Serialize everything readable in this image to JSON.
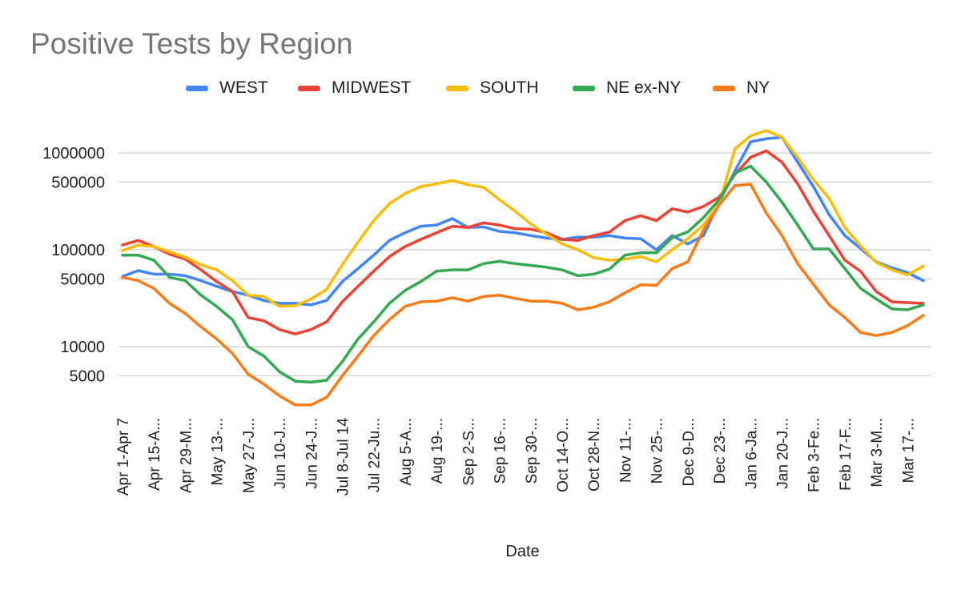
{
  "chart_data": {
    "type": "line",
    "title": "Positive Tests by Region",
    "xlabel": "Date",
    "ylabel": "",
    "yscale": "log",
    "ylim": [
      2500,
      2000000
    ],
    "grid": true,
    "legend_position": "top",
    "yticks": [
      {
        "value": 5000,
        "label": "5000"
      },
      {
        "value": 10000,
        "label": "10000"
      },
      {
        "value": 50000,
        "label": "50000"
      },
      {
        "value": 100000,
        "label": "100000"
      },
      {
        "value": 500000,
        "label": "500000"
      },
      {
        "value": 1000000,
        "label": "1000000"
      }
    ],
    "categories": [
      "Apr 1-Apr 7",
      "Apr 8-Apr 14",
      "Apr 15-Apr 21",
      "Apr 22-Apr 28",
      "Apr 29-May 5",
      "May 6-May 12",
      "May 13-May 19",
      "May 20-May 26",
      "May 27-Jun 2",
      "Jun 3-Jun 9",
      "Jun 10-Jun 16",
      "Jun 17-Jun 23",
      "Jun 24-Jun 30",
      "Jul 1-Jul 7",
      "Jul 8-Jul 14",
      "Jul 15-Jul 21",
      "Jul 22-Jul 28",
      "Jul 29-Aug 4",
      "Aug 5-Aug 11",
      "Aug 12-Aug 18",
      "Aug 19-Aug 25",
      "Aug 26-Sep 1",
      "Sep 2-Sep 8",
      "Sep 9-Sep 15",
      "Sep 16-Sep 22",
      "Sep 23-Sep 29",
      "Sep 30-Oct 6",
      "Oct 7-Oct 13",
      "Oct 14-Oct 20",
      "Oct 21-Oct 27",
      "Oct 28-Nov 3",
      "Nov 4-Nov 10",
      "Nov 11-Nov 17",
      "Nov 18-Nov 24",
      "Nov 25-Dec 1",
      "Dec 2-Dec 8",
      "Dec 9-Dec 15",
      "Dec 16-Dec 22",
      "Dec 23-Dec 29",
      "Dec 30-Jan 5",
      "Jan 6-Jan 12",
      "Jan 13-Jan 19",
      "Jan 20-Jan 26",
      "Jan 27-Feb 2",
      "Feb 3-Feb 9",
      "Feb 10-Feb 16",
      "Feb 17-Feb 23",
      "Feb 24-Mar 2",
      "Mar 3-Mar 9",
      "Mar 10-Mar 16",
      "Mar 17-Mar 23",
      "Mar 24-Mar 30"
    ],
    "xtick_labels": [
      {
        "index": 0,
        "label": "Apr 1-Apr 7"
      },
      {
        "index": 2,
        "label": "Apr 15-A..."
      },
      {
        "index": 4,
        "label": "Apr 29-M..."
      },
      {
        "index": 6,
        "label": "May 13-..."
      },
      {
        "index": 8,
        "label": "May 27-J..."
      },
      {
        "index": 10,
        "label": "Jun 10-J..."
      },
      {
        "index": 12,
        "label": "Jun 24-J..."
      },
      {
        "index": 14,
        "label": "Jul 8-Jul 14"
      },
      {
        "index": 16,
        "label": "Jul 22-Ju..."
      },
      {
        "index": 18,
        "label": "Aug 5-A..."
      },
      {
        "index": 20,
        "label": "Aug 19-..."
      },
      {
        "index": 22,
        "label": "Sep 2-S..."
      },
      {
        "index": 24,
        "label": "Sep 16-..."
      },
      {
        "index": 26,
        "label": "Sep 30-..."
      },
      {
        "index": 28,
        "label": "Oct 14-O..."
      },
      {
        "index": 30,
        "label": "Oct 28-N..."
      },
      {
        "index": 32,
        "label": "Nov 11-..."
      },
      {
        "index": 34,
        "label": "Nov 25-..."
      },
      {
        "index": 36,
        "label": "Dec 9-D..."
      },
      {
        "index": 38,
        "label": "Dec 23-..."
      },
      {
        "index": 40,
        "label": "Jan 6-Ja..."
      },
      {
        "index": 42,
        "label": "Jan 20-J..."
      },
      {
        "index": 44,
        "label": "Feb 3-Fe..."
      },
      {
        "index": 46,
        "label": "Feb 17-F..."
      },
      {
        "index": 48,
        "label": "Mar 3-M..."
      },
      {
        "index": 50,
        "label": "Mar 17-..."
      }
    ],
    "series": [
      {
        "name": "WEST",
        "color": "#4285F4",
        "values": [
          53000,
          61000,
          56000,
          56000,
          54000,
          48000,
          42000,
          37000,
          34000,
          30000,
          28000,
          28000,
          27000,
          30000,
          47000,
          64000,
          88000,
          125000,
          150000,
          175000,
          180000,
          210000,
          170000,
          172000,
          155000,
          150000,
          140000,
          132000,
          128000,
          135000,
          135000,
          140000,
          132000,
          130000,
          100000,
          140000,
          115000,
          140000,
          310000,
          650000,
          1300000,
          1400000,
          1450000,
          800000,
          450000,
          230000,
          140000,
          103000,
          75000,
          65000,
          58000,
          48000
        ]
      },
      {
        "name": "MIDWEST",
        "color": "#EA4335",
        "values": [
          112000,
          125000,
          108000,
          90000,
          80000,
          62000,
          47000,
          37000,
          20000,
          18500,
          15000,
          13500,
          15000,
          18000,
          29000,
          42000,
          60000,
          85000,
          108000,
          128000,
          150000,
          175000,
          170000,
          190000,
          180000,
          165000,
          163000,
          150000,
          128000,
          125000,
          140000,
          152000,
          200000,
          225000,
          200000,
          265000,
          245000,
          280000,
          350000,
          600000,
          900000,
          1050000,
          800000,
          480000,
          250000,
          140000,
          78000,
          60000,
          37000,
          29000,
          28500,
          28000
        ]
      },
      {
        "name": "SOUTH",
        "color": "#FBBC04",
        "values": [
          98000,
          112000,
          108000,
          95000,
          84000,
          70000,
          62000,
          48000,
          34000,
          33000,
          26000,
          26500,
          31000,
          39000,
          70000,
          120000,
          200000,
          300000,
          380000,
          450000,
          480000,
          520000,
          470000,
          440000,
          330000,
          250000,
          185000,
          145000,
          115000,
          100000,
          83000,
          78000,
          80000,
          85000,
          75000,
          100000,
          130000,
          180000,
          300000,
          1100000,
          1500000,
          1700000,
          1450000,
          900000,
          530000,
          340000,
          170000,
          110000,
          74000,
          62000,
          55000,
          68000
        ]
      },
      {
        "name": "NE ex-NY",
        "color": "#34A853",
        "values": [
          88000,
          88000,
          78000,
          52000,
          48000,
          34000,
          26000,
          19000,
          10000,
          8000,
          5500,
          4400,
          4300,
          4500,
          7000,
          12000,
          18000,
          28000,
          38000,
          47000,
          60000,
          62000,
          62000,
          72000,
          76000,
          72000,
          69000,
          66000,
          62000,
          54000,
          56000,
          63000,
          88000,
          93000,
          93000,
          133000,
          153000,
          215000,
          330000,
          620000,
          730000,
          500000,
          310000,
          180000,
          102000,
          102000,
          64000,
          40000,
          31000,
          24500,
          24000,
          27000
        ]
      },
      {
        "name": "NY",
        "color": "#FA7B17",
        "values": [
          52000,
          48000,
          40000,
          28000,
          22000,
          16000,
          12000,
          8500,
          5200,
          4100,
          3100,
          2500,
          2500,
          3000,
          5000,
          8000,
          13000,
          19000,
          26000,
          29000,
          29500,
          32000,
          29500,
          33000,
          34000,
          31500,
          29500,
          29500,
          28000,
          24000,
          25500,
          29000,
          36000,
          43500,
          43000,
          64000,
          75000,
          160000,
          290000,
          460000,
          475000,
          240000,
          140000,
          72000,
          44000,
          27000,
          20000,
          14000,
          13000,
          14000,
          16500,
          21000
        ]
      }
    ]
  }
}
